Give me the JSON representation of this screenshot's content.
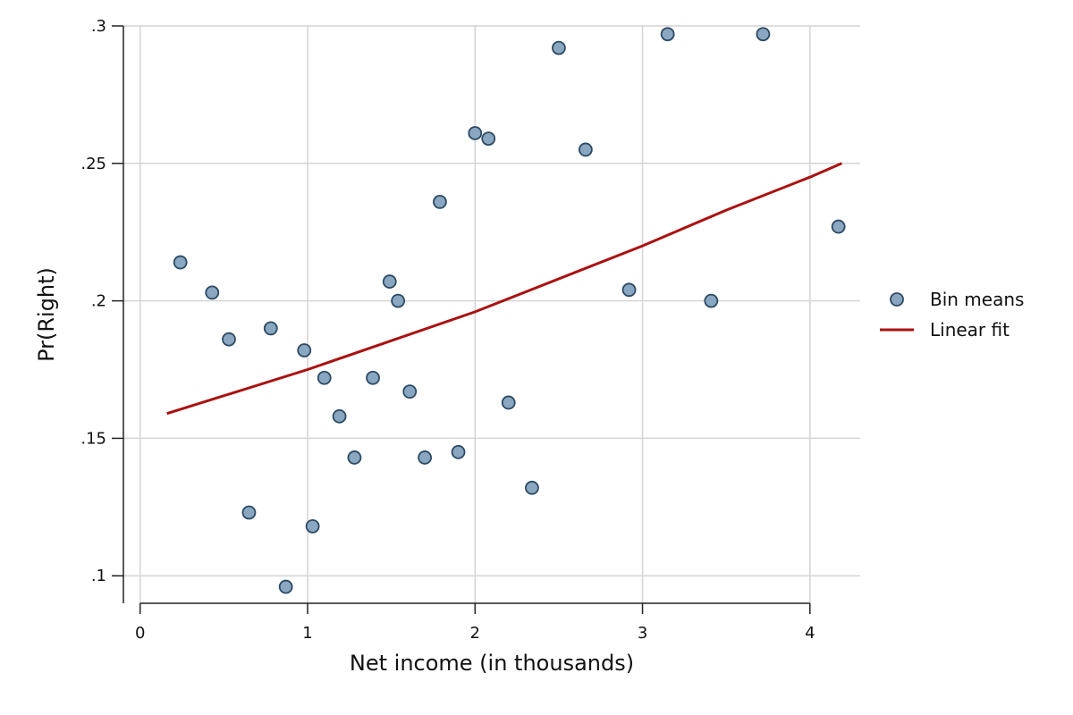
{
  "chart_data": {
    "type": "scatter",
    "title": "",
    "xlabel": "Net income (in thousands)",
    "ylabel": "Pr(Right)",
    "xlim": [
      -0.1,
      4.3
    ],
    "ylim": [
      0.09,
      0.3
    ],
    "xticks": [
      0,
      1,
      2,
      3,
      4
    ],
    "xtick_labels": [
      "0",
      "1",
      "2",
      "3",
      "4"
    ],
    "yticks": [
      0.1,
      0.15,
      0.2,
      0.25,
      0.3
    ],
    "ytick_labels": [
      ".1",
      ".15",
      ".2",
      ".25",
      ".3"
    ],
    "grid": true,
    "legend_position": "right",
    "series": [
      {
        "name": "Bin means",
        "kind": "scatter",
        "color": "#8aa7c2",
        "edge_color": "#2d4a63",
        "points": [
          {
            "x": 0.24,
            "y": 0.214
          },
          {
            "x": 0.43,
            "y": 0.203
          },
          {
            "x": 0.53,
            "y": 0.186
          },
          {
            "x": 0.65,
            "y": 0.123
          },
          {
            "x": 0.78,
            "y": 0.19
          },
          {
            "x": 0.87,
            "y": 0.096
          },
          {
            "x": 0.98,
            "y": 0.182
          },
          {
            "x": 1.03,
            "y": 0.118
          },
          {
            "x": 1.1,
            "y": 0.172
          },
          {
            "x": 1.19,
            "y": 0.158
          },
          {
            "x": 1.28,
            "y": 0.143
          },
          {
            "x": 1.39,
            "y": 0.172
          },
          {
            "x": 1.49,
            "y": 0.207
          },
          {
            "x": 1.54,
            "y": 0.2
          },
          {
            "x": 1.61,
            "y": 0.167
          },
          {
            "x": 1.7,
            "y": 0.143
          },
          {
            "x": 1.79,
            "y": 0.236
          },
          {
            "x": 1.9,
            "y": 0.145
          },
          {
            "x": 2.0,
            "y": 0.261
          },
          {
            "x": 2.08,
            "y": 0.259
          },
          {
            "x": 2.2,
            "y": 0.163
          },
          {
            "x": 2.34,
            "y": 0.132
          },
          {
            "x": 2.5,
            "y": 0.292
          },
          {
            "x": 2.66,
            "y": 0.255
          },
          {
            "x": 2.92,
            "y": 0.204
          },
          {
            "x": 3.15,
            "y": 0.297
          },
          {
            "x": 3.41,
            "y": 0.2
          },
          {
            "x": 3.72,
            "y": 0.297
          },
          {
            "x": 4.17,
            "y": 0.227
          }
        ]
      },
      {
        "name": "Linear fit",
        "kind": "line",
        "color": "#aa1111",
        "points": [
          {
            "x": 0.16,
            "y": 0.159
          },
          {
            "x": 1.0,
            "y": 0.175
          },
          {
            "x": 2.0,
            "y": 0.196
          },
          {
            "x": 3.0,
            "y": 0.22
          },
          {
            "x": 3.5,
            "y": 0.233
          },
          {
            "x": 4.0,
            "y": 0.245
          },
          {
            "x": 4.19,
            "y": 0.25
          }
        ]
      }
    ]
  }
}
